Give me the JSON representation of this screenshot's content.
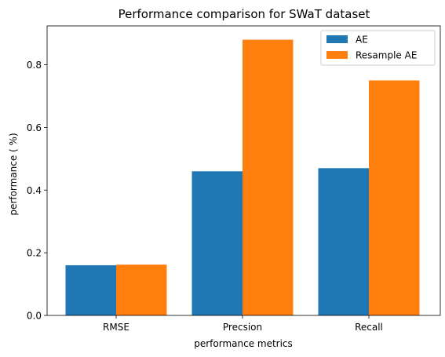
{
  "chart_data": {
    "type": "bar",
    "title": "Performance comparison for SWaT dataset",
    "xlabel": "performance metrics",
    "ylabel": "performance ( %)",
    "categories": [
      "RMSE",
      "Precsion",
      "Recall"
    ],
    "series": [
      {
        "name": "AE",
        "color": "#1f77b4",
        "values": [
          0.16,
          0.46,
          0.47
        ]
      },
      {
        "name": "Resample AE",
        "color": "#ff7f0e",
        "values": [
          0.162,
          0.88,
          0.75
        ]
      }
    ],
    "ylim": [
      0,
      0.924
    ],
    "yticks": [
      0.0,
      0.2,
      0.4,
      0.6,
      0.8
    ],
    "ytick_labels": [
      "0.0",
      "0.2",
      "0.4",
      "0.6",
      "0.8"
    ],
    "legend": "top-right",
    "grid": false
  }
}
